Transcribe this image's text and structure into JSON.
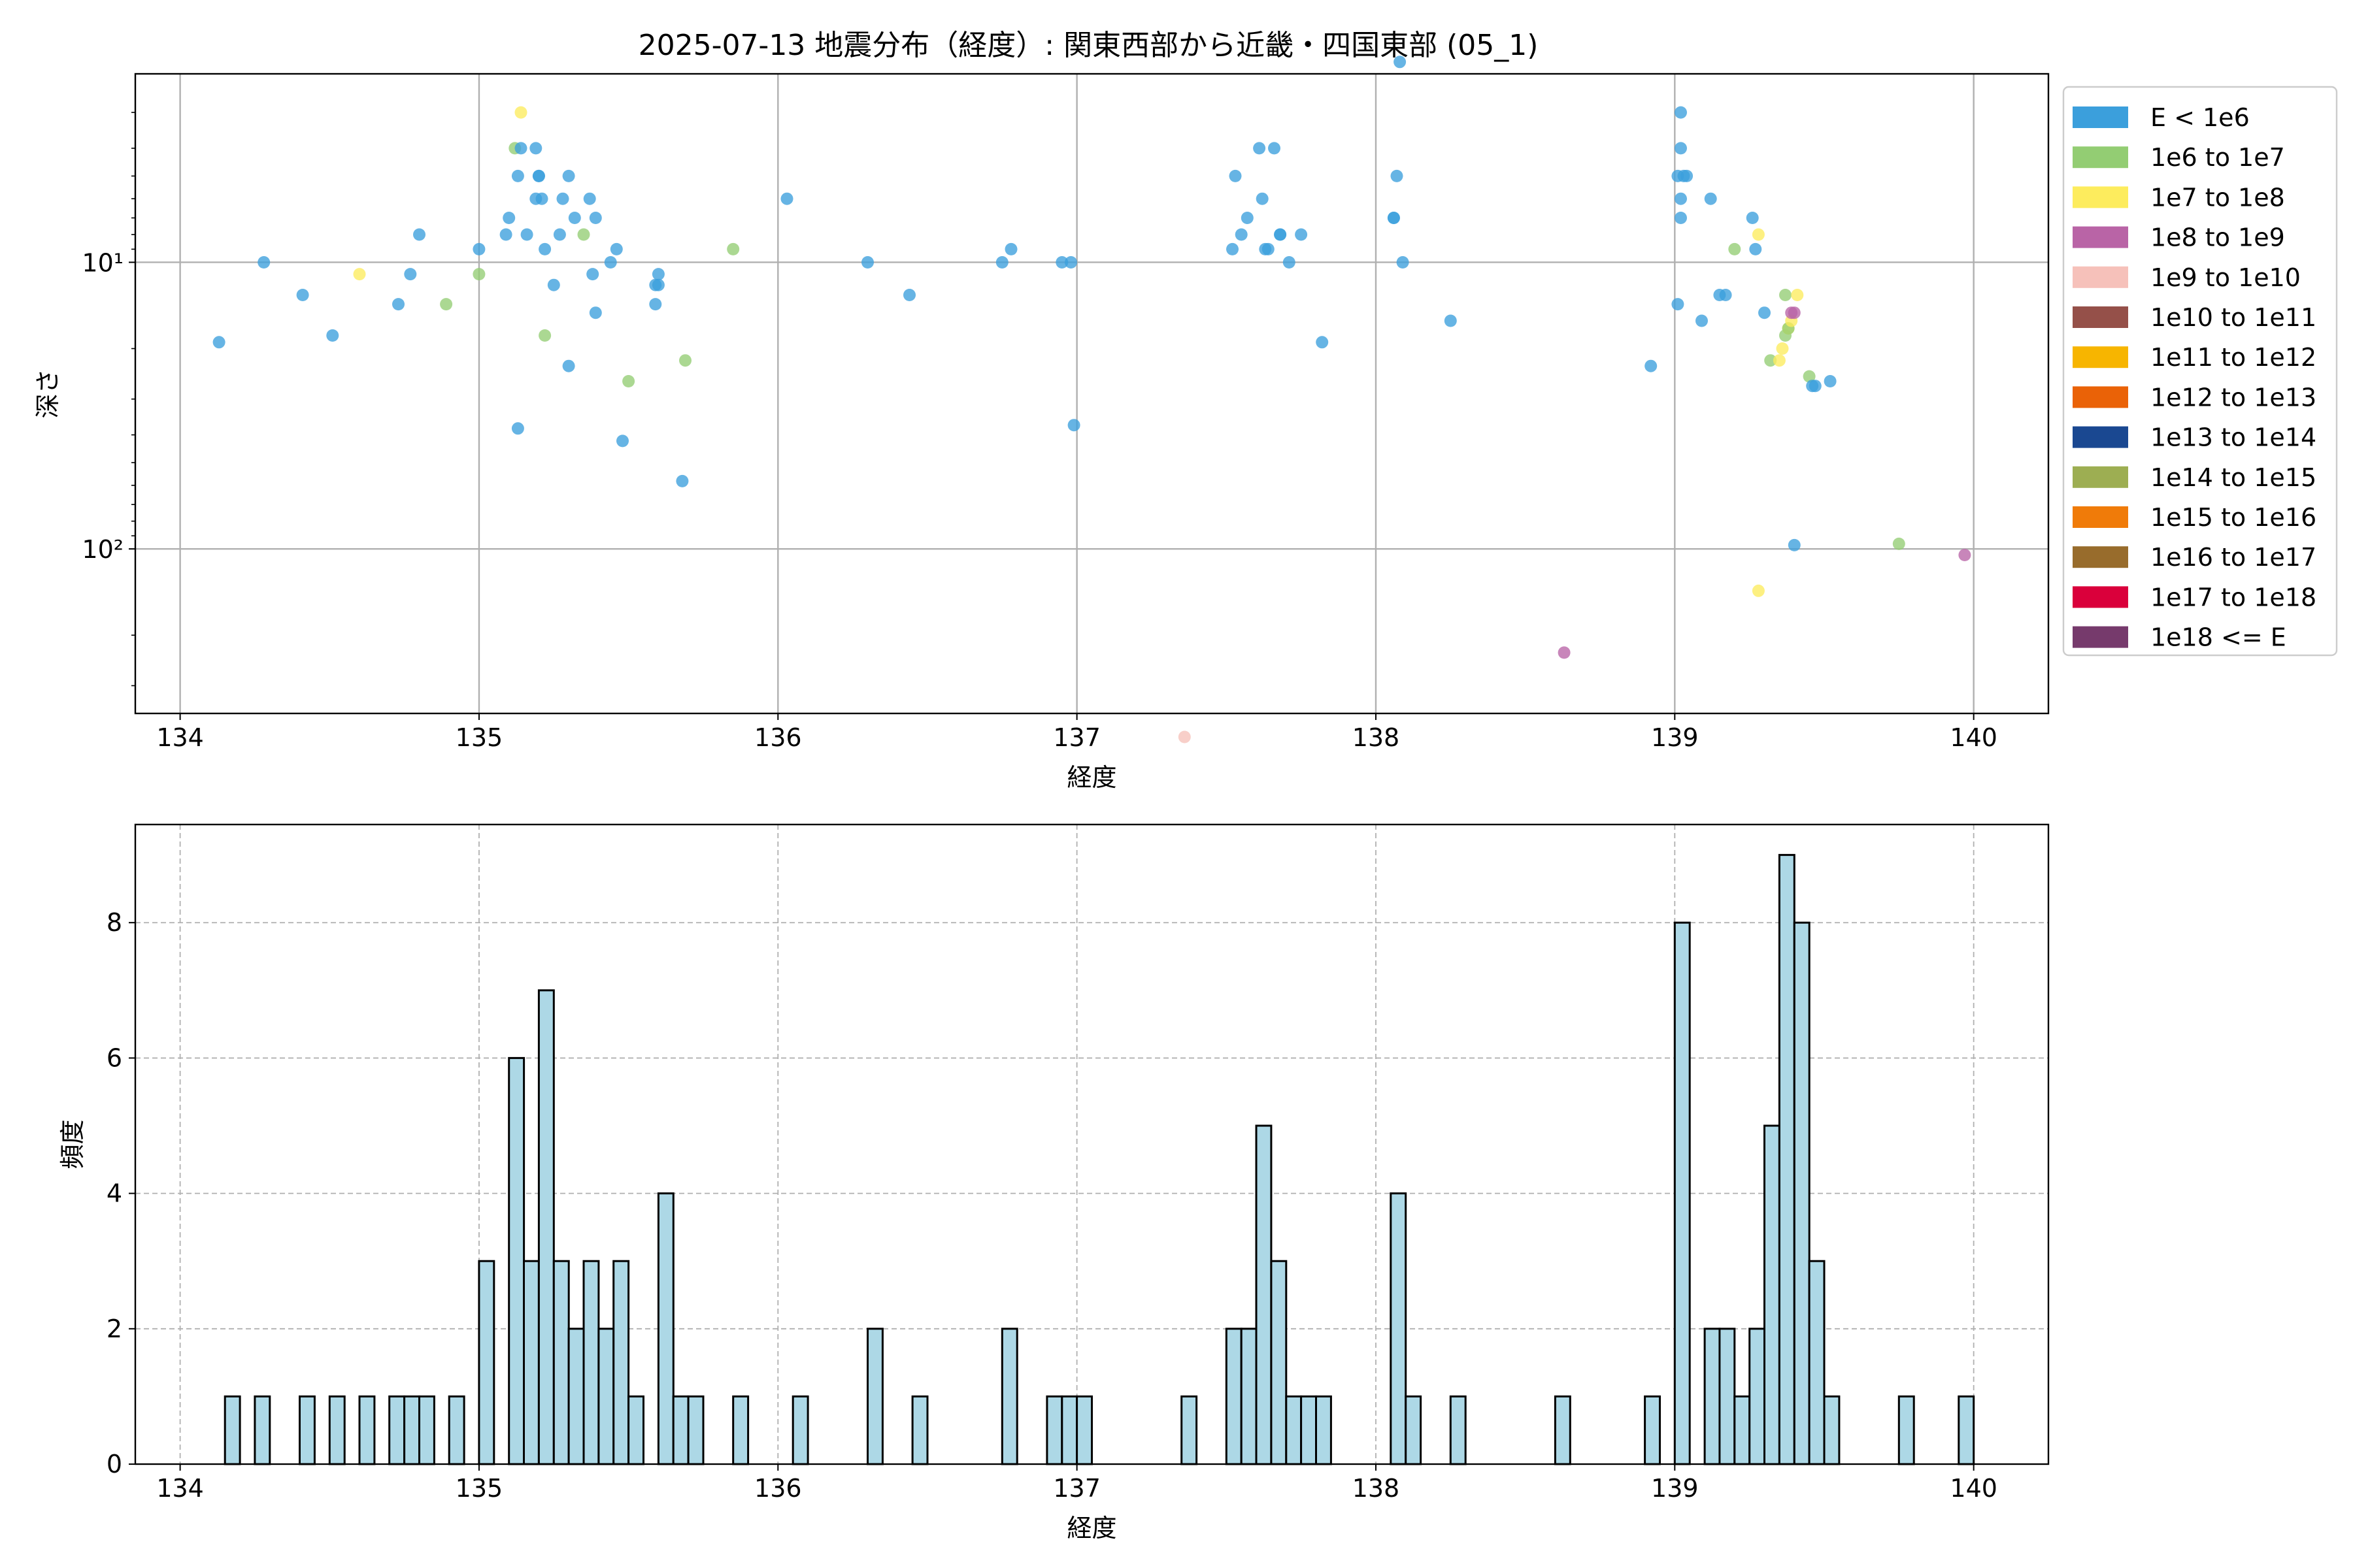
{
  "figure": {
    "title": "2025-07-13 地震分布（経度）: 関東西部から近畿・四国東部 (05_1)"
  },
  "chart_data": [
    {
      "type": "scatter",
      "xlabel": "経度",
      "ylabel": "深さ",
      "xlim": [
        133.85,
        140.25
      ],
      "xticks": [
        134,
        135,
        136,
        137,
        138,
        139,
        140
      ],
      "ylim": [
        375,
        2.2
      ],
      "yscale": "log",
      "y_inverted": true,
      "yticks": [
        {
          "value": 10,
          "label": "10¹"
        },
        {
          "value": 100,
          "label": "10²"
        }
      ],
      "grid": true,
      "legend": {
        "placement": "outside-right-top",
        "entries": [
          {
            "label": "E < 1e6",
            "color": "#3b9fdc"
          },
          {
            "label": "1e6 to 1e7",
            "color": "#93cd73"
          },
          {
            "label": "1e7 to 1e8",
            "color": "#fdec5d"
          },
          {
            "label": "1e8 to 1e9",
            "color": "#b964a6"
          },
          {
            "label": "1e9 to 1e10",
            "color": "#f6c1ba"
          },
          {
            "label": "1e10 to 1e11",
            "color": "#955049"
          },
          {
            "label": "1e11 to 1e12",
            "color": "#f7b500"
          },
          {
            "label": "1e12 to 1e13",
            "color": "#ea6207"
          },
          {
            "label": "1e13 to 1e14",
            "color": "#1a4891"
          },
          {
            "label": "1e14 to 1e15",
            "color": "#9dae52"
          },
          {
            "label": "1e15 to 1e16",
            "color": "#f07b09"
          },
          {
            "label": "1e16 to 1e17",
            "color": "#986c2c"
          },
          {
            "label": "1e17 to 1e18",
            "color": "#da003b"
          },
          {
            "label": "1e18 <= E",
            "color": "#763a6c"
          }
        ]
      },
      "points": [
        {
          "x": 134.13,
          "y": 19,
          "c": 0
        },
        {
          "x": 134.28,
          "y": 10,
          "c": 0
        },
        {
          "x": 134.41,
          "y": 13,
          "c": 0
        },
        {
          "x": 134.51,
          "y": 18,
          "c": 0
        },
        {
          "x": 134.6,
          "y": 11,
          "c": 2
        },
        {
          "x": 134.73,
          "y": 14,
          "c": 0
        },
        {
          "x": 134.77,
          "y": 11,
          "c": 0
        },
        {
          "x": 134.8,
          "y": 8,
          "c": 0
        },
        {
          "x": 134.89,
          "y": 14,
          "c": 1
        },
        {
          "x": 135.0,
          "y": 9,
          "c": 0
        },
        {
          "x": 135.0,
          "y": 11,
          "c": 1
        },
        {
          "x": 135.09,
          "y": 8,
          "c": 0
        },
        {
          "x": 135.1,
          "y": 7,
          "c": 0
        },
        {
          "x": 135.12,
          "y": 4,
          "c": 1
        },
        {
          "x": 135.13,
          "y": 5,
          "c": 0
        },
        {
          "x": 135.13,
          "y": 38,
          "c": 0
        },
        {
          "x": 135.14,
          "y": 3,
          "c": 2
        },
        {
          "x": 135.14,
          "y": 4,
          "c": 0
        },
        {
          "x": 135.16,
          "y": 8,
          "c": 0
        },
        {
          "x": 135.19,
          "y": 4,
          "c": 0
        },
        {
          "x": 135.19,
          "y": 6,
          "c": 0
        },
        {
          "x": 135.2,
          "y": 5,
          "c": 0
        },
        {
          "x": 135.2,
          "y": 5,
          "c": 0
        },
        {
          "x": 135.21,
          "y": 6,
          "c": 0
        },
        {
          "x": 135.22,
          "y": 9,
          "c": 0
        },
        {
          "x": 135.22,
          "y": 18,
          "c": 1
        },
        {
          "x": 135.25,
          "y": 12,
          "c": 0
        },
        {
          "x": 135.27,
          "y": 8,
          "c": 0
        },
        {
          "x": 135.28,
          "y": 6,
          "c": 0
        },
        {
          "x": 135.3,
          "y": 5,
          "c": 0
        },
        {
          "x": 135.3,
          "y": 23,
          "c": 0
        },
        {
          "x": 135.32,
          "y": 7,
          "c": 0
        },
        {
          "x": 135.35,
          "y": 8,
          "c": 1
        },
        {
          "x": 135.37,
          "y": 6,
          "c": 0
        },
        {
          "x": 135.38,
          "y": 11,
          "c": 0
        },
        {
          "x": 135.39,
          "y": 7,
          "c": 0
        },
        {
          "x": 135.39,
          "y": 15,
          "c": 0
        },
        {
          "x": 135.44,
          "y": 10,
          "c": 0
        },
        {
          "x": 135.46,
          "y": 9,
          "c": 0
        },
        {
          "x": 135.48,
          "y": 42,
          "c": 0
        },
        {
          "x": 135.5,
          "y": 26,
          "c": 1
        },
        {
          "x": 135.59,
          "y": 14,
          "c": 0
        },
        {
          "x": 135.59,
          "y": 12,
          "c": 0
        },
        {
          "x": 135.6,
          "y": 12,
          "c": 0
        },
        {
          "x": 135.6,
          "y": 11,
          "c": 0
        },
        {
          "x": 135.68,
          "y": 58,
          "c": 0
        },
        {
          "x": 135.69,
          "y": 22,
          "c": 1
        },
        {
          "x": 135.85,
          "y": 9,
          "c": 1
        },
        {
          "x": 136.03,
          "y": 6,
          "c": 0
        },
        {
          "x": 136.3,
          "y": 10,
          "c": 0
        },
        {
          "x": 136.44,
          "y": 13,
          "c": 0
        },
        {
          "x": 136.75,
          "y": 10,
          "c": 0
        },
        {
          "x": 136.78,
          "y": 9,
          "c": 0
        },
        {
          "x": 136.95,
          "y": 10,
          "c": 0
        },
        {
          "x": 136.98,
          "y": 10,
          "c": 0
        },
        {
          "x": 136.99,
          "y": 37,
          "c": 0
        },
        {
          "x": 137.36,
          "y": 453,
          "c": 4
        },
        {
          "x": 137.52,
          "y": 9,
          "c": 0
        },
        {
          "x": 137.53,
          "y": 5,
          "c": 0
        },
        {
          "x": 137.55,
          "y": 8,
          "c": 0
        },
        {
          "x": 137.57,
          "y": 7,
          "c": 0
        },
        {
          "x": 137.61,
          "y": 4,
          "c": 0
        },
        {
          "x": 137.62,
          "y": 6,
          "c": 0
        },
        {
          "x": 137.63,
          "y": 9,
          "c": 0
        },
        {
          "x": 137.64,
          "y": 9,
          "c": 0
        },
        {
          "x": 137.66,
          "y": 4,
          "c": 0
        },
        {
          "x": 137.68,
          "y": 8,
          "c": 0
        },
        {
          "x": 137.68,
          "y": 8,
          "c": 0
        },
        {
          "x": 137.71,
          "y": 10,
          "c": 0
        },
        {
          "x": 137.75,
          "y": 8,
          "c": 0
        },
        {
          "x": 137.82,
          "y": 19,
          "c": 0
        },
        {
          "x": 138.06,
          "y": 7,
          "c": 0
        },
        {
          "x": 138.06,
          "y": 7,
          "c": 0
        },
        {
          "x": 138.07,
          "y": 5,
          "c": 0
        },
        {
          "x": 138.08,
          "y": 2,
          "c": 0
        },
        {
          "x": 138.09,
          "y": 10,
          "c": 0
        },
        {
          "x": 138.25,
          "y": 16,
          "c": 0
        },
        {
          "x": 138.63,
          "y": 230,
          "c": 3
        },
        {
          "x": 138.92,
          "y": 23,
          "c": 0
        },
        {
          "x": 139.01,
          "y": 14,
          "c": 0
        },
        {
          "x": 139.01,
          "y": 5,
          "c": 0
        },
        {
          "x": 139.02,
          "y": 6,
          "c": 0
        },
        {
          "x": 139.02,
          "y": 7,
          "c": 0
        },
        {
          "x": 139.02,
          "y": 3,
          "c": 0
        },
        {
          "x": 139.02,
          "y": 4,
          "c": 0
        },
        {
          "x": 139.03,
          "y": 5,
          "c": 0
        },
        {
          "x": 139.04,
          "y": 5,
          "c": 0
        },
        {
          "x": 139.09,
          "y": 16,
          "c": 0
        },
        {
          "x": 139.12,
          "y": 6,
          "c": 0
        },
        {
          "x": 139.15,
          "y": 13,
          "c": 0
        },
        {
          "x": 139.17,
          "y": 13,
          "c": 0
        },
        {
          "x": 139.2,
          "y": 9,
          "c": 1
        },
        {
          "x": 139.26,
          "y": 7,
          "c": 0
        },
        {
          "x": 139.27,
          "y": 9,
          "c": 0
        },
        {
          "x": 139.28,
          "y": 8,
          "c": 2
        },
        {
          "x": 139.28,
          "y": 140,
          "c": 2
        },
        {
          "x": 139.3,
          "y": 15,
          "c": 0
        },
        {
          "x": 139.32,
          "y": 22,
          "c": 1
        },
        {
          "x": 139.35,
          "y": 22,
          "c": 2
        },
        {
          "x": 139.36,
          "y": 20,
          "c": 2
        },
        {
          "x": 139.37,
          "y": 18,
          "c": 1
        },
        {
          "x": 139.37,
          "y": 13,
          "c": 1
        },
        {
          "x": 139.38,
          "y": 17,
          "c": 2
        },
        {
          "x": 139.38,
          "y": 17,
          "c": 1
        },
        {
          "x": 139.39,
          "y": 16,
          "c": 2
        },
        {
          "x": 139.39,
          "y": 15,
          "c": 3
        },
        {
          "x": 139.4,
          "y": 15,
          "c": 3
        },
        {
          "x": 139.4,
          "y": 97,
          "c": 0
        },
        {
          "x": 139.41,
          "y": 13,
          "c": 2
        },
        {
          "x": 139.45,
          "y": 25,
          "c": 1
        },
        {
          "x": 139.46,
          "y": 27,
          "c": 0
        },
        {
          "x": 139.47,
          "y": 27,
          "c": 0
        },
        {
          "x": 139.52,
          "y": 26,
          "c": 0
        },
        {
          "x": 139.75,
          "y": 96,
          "c": 1
        },
        {
          "x": 139.97,
          "y": 105,
          "c": 3
        }
      ]
    },
    {
      "type": "bar",
      "xlabel": "経度",
      "ylabel": "頻度",
      "xlim": [
        133.85,
        140.25
      ],
      "xticks": [
        134,
        135,
        136,
        137,
        138,
        139,
        140
      ],
      "ylim": [
        0,
        9.45
      ],
      "yticks": [
        0,
        2,
        4,
        6,
        8
      ],
      "grid": true,
      "bin_width": 0.05,
      "fill_color": "#add8e6",
      "edge_color": "#000000",
      "bins": [
        {
          "x": 134.15,
          "y": 1
        },
        {
          "x": 134.25,
          "y": 1
        },
        {
          "x": 134.4,
          "y": 1
        },
        {
          "x": 134.5,
          "y": 1
        },
        {
          "x": 134.6,
          "y": 1
        },
        {
          "x": 134.7,
          "y": 1
        },
        {
          "x": 134.75,
          "y": 1
        },
        {
          "x": 134.8,
          "y": 1
        },
        {
          "x": 134.9,
          "y": 1
        },
        {
          "x": 135.0,
          "y": 3
        },
        {
          "x": 135.1,
          "y": 6
        },
        {
          "x": 135.15,
          "y": 3
        },
        {
          "x": 135.2,
          "y": 7
        },
        {
          "x": 135.25,
          "y": 3
        },
        {
          "x": 135.3,
          "y": 2
        },
        {
          "x": 135.35,
          "y": 3
        },
        {
          "x": 135.4,
          "y": 2
        },
        {
          "x": 135.45,
          "y": 3
        },
        {
          "x": 135.5,
          "y": 1
        },
        {
          "x": 135.6,
          "y": 4
        },
        {
          "x": 135.65,
          "y": 1
        },
        {
          "x": 135.7,
          "y": 1
        },
        {
          "x": 135.85,
          "y": 1
        },
        {
          "x": 136.05,
          "y": 1
        },
        {
          "x": 136.3,
          "y": 2
        },
        {
          "x": 136.45,
          "y": 1
        },
        {
          "x": 136.75,
          "y": 2
        },
        {
          "x": 136.9,
          "y": 1
        },
        {
          "x": 136.95,
          "y": 1
        },
        {
          "x": 137.0,
          "y": 1
        },
        {
          "x": 137.35,
          "y": 1
        },
        {
          "x": 137.5,
          "y": 2
        },
        {
          "x": 137.55,
          "y": 2
        },
        {
          "x": 137.6,
          "y": 5
        },
        {
          "x": 137.65,
          "y": 3
        },
        {
          "x": 137.7,
          "y": 1
        },
        {
          "x": 137.75,
          "y": 1
        },
        {
          "x": 137.8,
          "y": 1
        },
        {
          "x": 138.05,
          "y": 4
        },
        {
          "x": 138.1,
          "y": 1
        },
        {
          "x": 138.25,
          "y": 1
        },
        {
          "x": 138.6,
          "y": 1
        },
        {
          "x": 138.9,
          "y": 1
        },
        {
          "x": 139.0,
          "y": 8
        },
        {
          "x": 139.1,
          "y": 2
        },
        {
          "x": 139.15,
          "y": 2
        },
        {
          "x": 139.2,
          "y": 1
        },
        {
          "x": 139.25,
          "y": 2
        },
        {
          "x": 139.3,
          "y": 5
        },
        {
          "x": 139.35,
          "y": 9
        },
        {
          "x": 139.4,
          "y": 8
        },
        {
          "x": 139.45,
          "y": 3
        },
        {
          "x": 139.5,
          "y": 1
        },
        {
          "x": 139.75,
          "y": 1
        },
        {
          "x": 139.95,
          "y": 1
        }
      ]
    }
  ]
}
